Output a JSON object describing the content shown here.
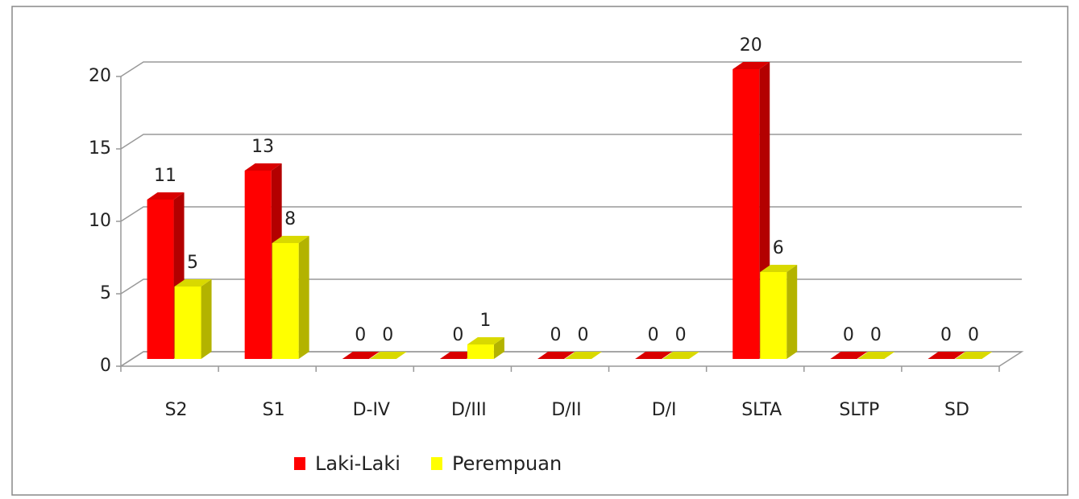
{
  "chart_data": {
    "type": "bar3d",
    "categories": [
      "S2",
      "S1",
      "D-IV",
      "D/III",
      "D/II",
      "D/I",
      "SLTA",
      "SLTP",
      "SD"
    ],
    "series": [
      {
        "name": "Laki-Laki",
        "color": "#ff0000",
        "values": [
          11,
          13,
          0,
          0,
          0,
          0,
          20,
          0,
          0
        ]
      },
      {
        "name": "Perempuan",
        "color": "#ffff00",
        "values": [
          5,
          8,
          0,
          1,
          0,
          0,
          6,
          0,
          0
        ]
      }
    ],
    "ylim": [
      0,
      20
    ],
    "yticks": [
      0,
      5,
      10,
      15,
      20
    ],
    "grid": true,
    "legend": "bottom"
  }
}
